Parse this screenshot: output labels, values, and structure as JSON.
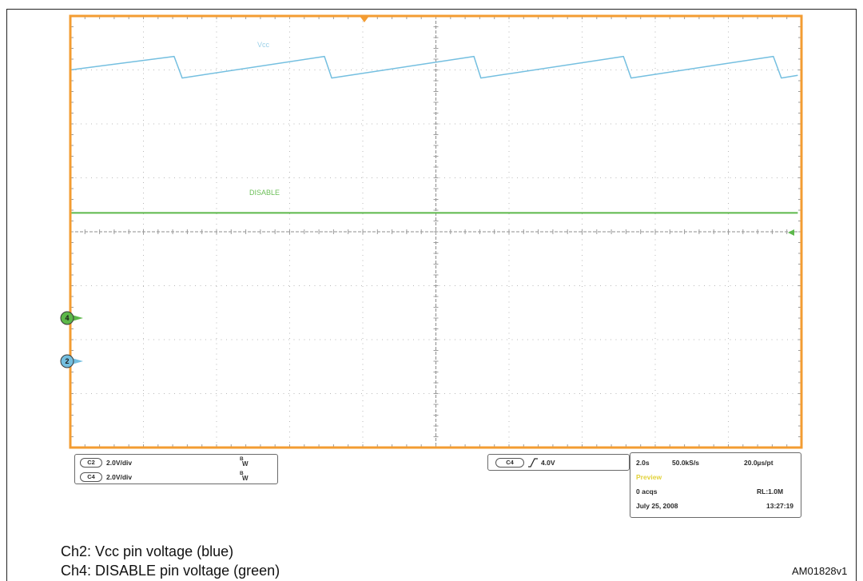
{
  "figure": {
    "caption_lines": [
      "Ch2: Vcc pin voltage (blue)",
      "Ch4: DISABLE pin voltage (green)"
    ],
    "figure_code": "AM01828v1"
  },
  "scope": {
    "frame_color": "#f39c32",
    "channels": [
      {
        "label": "C2",
        "scale": "2.0V/div",
        "bw_top": "B",
        "bw_bottom": "W"
      },
      {
        "label": "C4",
        "scale": "2.0V/div",
        "bw_top": "B",
        "bw_bottom": "W"
      }
    ],
    "trigger": {
      "source": "C4",
      "slope_icon": "rising-edge-icon",
      "level": "4.0V"
    },
    "acquisition": {
      "time_per_div": "2.0s",
      "sample_rate": "50.0kS/s",
      "time_per_point": "20.0µs/pt",
      "mode": "Preview",
      "acquisitions": "0 acqs",
      "record_length": "RL:1.0M",
      "date": "July 25, 2008",
      "time": "13:27:19"
    }
  },
  "chart_data": {
    "type": "line",
    "grid": true,
    "xlim": [
      0,
      20
    ],
    "series": [
      {
        "name": "Vcc",
        "color": "#74bfe0",
        "marker_label": "2",
        "ylim": [
          -3.2,
          12.8
        ],
        "x": [
          0,
          2.84,
          3.06,
          6.95,
          7.15,
          11.04,
          11.23,
          15.13,
          15.34,
          19.23,
          19.45,
          19.9
        ],
        "y": [
          10.8,
          11.3,
          10.5,
          11.3,
          10.5,
          11.3,
          10.5,
          11.3,
          10.5,
          11.3,
          10.5,
          10.6
        ]
      },
      {
        "name": "DISABLE",
        "color": "#5cb84a",
        "marker_label": "4",
        "ylim": [
          -4.8,
          11.2
        ],
        "x": [
          0,
          19.9
        ],
        "y": [
          3.9,
          3.9
        ]
      }
    ]
  }
}
